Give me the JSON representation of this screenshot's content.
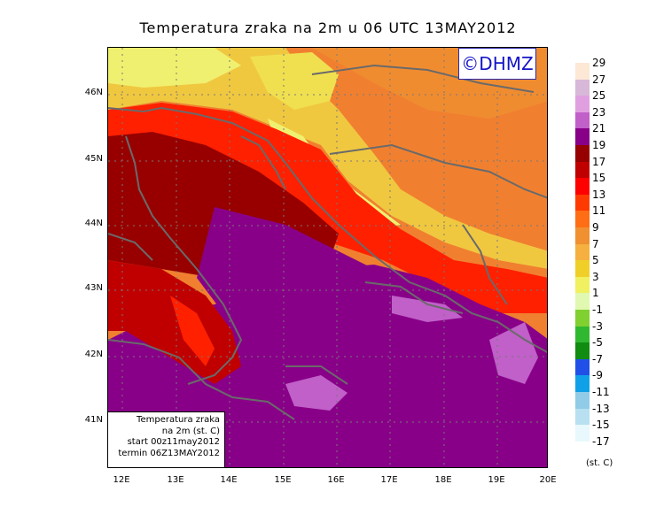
{
  "title": "Temperatura zraka na 2m u 06 UTC 13MAY2012",
  "logo": "©DHMZ",
  "latitude_labels": [
    "46N",
    "45N",
    "44N",
    "43N",
    "42N",
    "41N"
  ],
  "longitude_labels": [
    "12E",
    "13E",
    "14E",
    "15E",
    "16E",
    "17E",
    "18E",
    "19E",
    "20E"
  ],
  "info_box": {
    "line1": "Temperatura zraka",
    "line2": "na 2m (st. C)",
    "line3": "start 00z11may2012",
    "line4": "termin 06Z13MAY2012"
  },
  "legend": {
    "unit": "(st. C)",
    "labels": [
      "29",
      "27",
      "25",
      "23",
      "21",
      "19",
      "17",
      "15",
      "13",
      "11",
      "9",
      "7",
      "5",
      "3",
      "1",
      "-1",
      "-3",
      "-5",
      "-7",
      "-9",
      "-11",
      "-13",
      "-15",
      "-17"
    ],
    "colors": [
      "#fde8d6",
      "#d8b8d8",
      "#e0a0e0",
      "#c060c8",
      "#880088",
      "#960000",
      "#c00000",
      "#ff0000",
      "#ff3a00",
      "#ff6e14",
      "#f09030",
      "#f5b040",
      "#f0d028",
      "#f0f060",
      "#e0f8b0",
      "#80d030",
      "#30b830",
      "#108c10",
      "#2050e8",
      "#10a0e8",
      "#90cce8",
      "#b8e0f0",
      "#e8f8fc"
    ]
  }
}
